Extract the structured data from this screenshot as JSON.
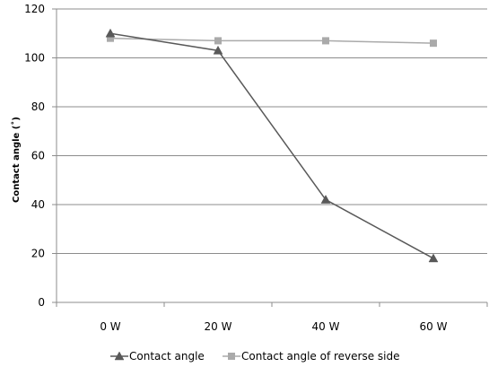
{
  "chart_data": {
    "type": "line",
    "title": "",
    "xlabel": "",
    "ylabel": "Contact angle (˚)",
    "categories": [
      "0 W",
      "20 W",
      "40 W",
      "60 W"
    ],
    "ylim": [
      0,
      120
    ],
    "yticks": [
      0,
      20,
      40,
      60,
      80,
      100,
      120
    ],
    "grid": true,
    "legend_position": "bottom",
    "series": [
      {
        "name": "Contact angle",
        "values": [
          110,
          103,
          42,
          18
        ],
        "color": "#595959",
        "marker": "triangle"
      },
      {
        "name": "Contact angle of reverse side",
        "values": [
          108,
          107,
          107,
          106
        ],
        "color": "#aaaaaa",
        "marker": "square"
      }
    ]
  }
}
